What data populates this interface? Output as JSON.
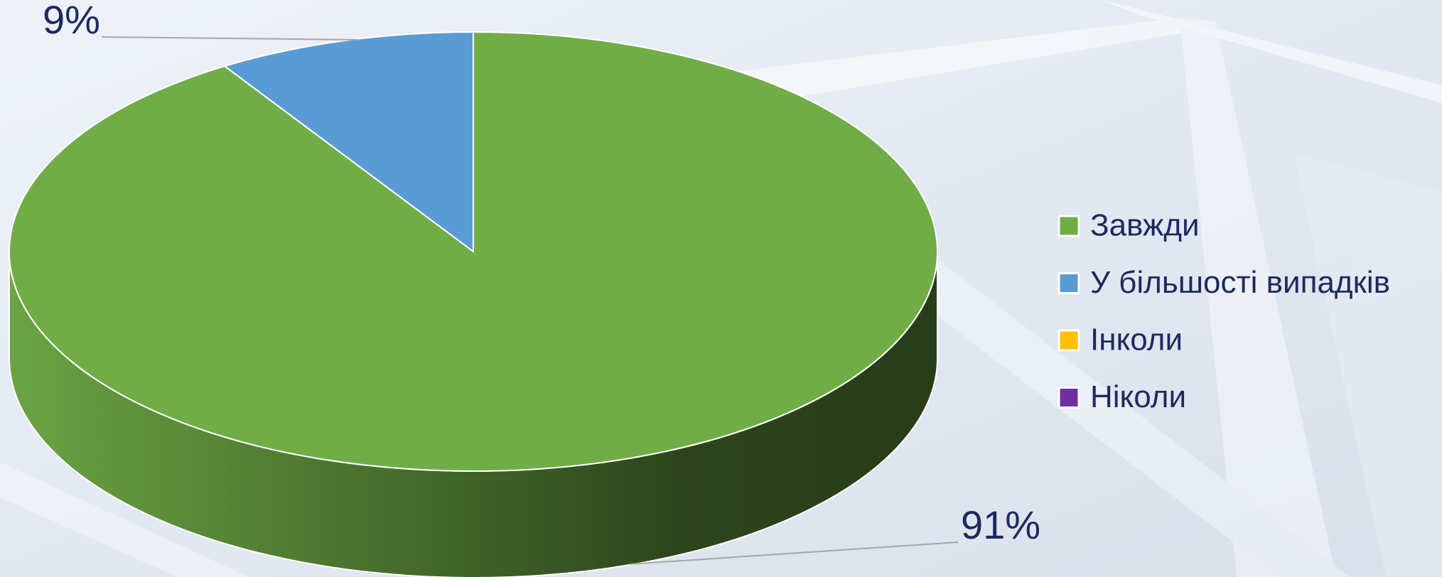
{
  "chart_data": {
    "type": "pie",
    "categories": [
      "Завжди",
      "У більшості випадків",
      "Інколи",
      "Ніколи"
    ],
    "values": [
      91,
      9,
      0,
      0
    ],
    "value_labels": [
      "91%",
      "9%",
      null,
      null
    ],
    "colors": [
      "#70ad47",
      "#5b9bd5",
      "#ffc000",
      "#7030a0"
    ],
    "legend_position": "right"
  }
}
